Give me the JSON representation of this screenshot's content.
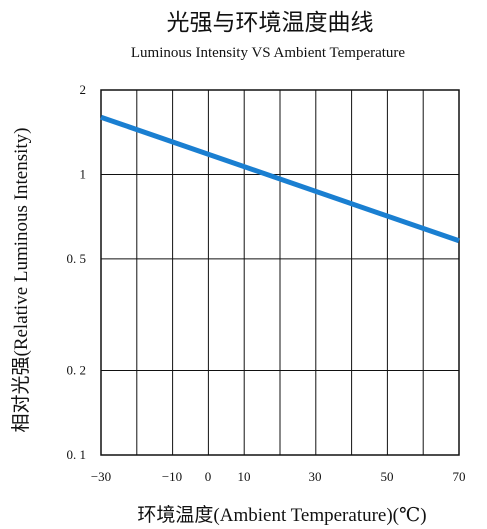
{
  "chart_data": {
    "type": "line",
    "title": "光强与环境温度曲线",
    "subtitle": "Luminous Intensity VS Ambient Temperature",
    "xlabel": "环境温度(Ambient Temperature)(℃)",
    "ylabel": "相对光强(Relative Luminous Intensity)",
    "xlim": [
      -30,
      70
    ],
    "x_ticks": [
      -30,
      -10,
      0,
      10,
      30,
      50,
      70
    ],
    "x_tick_labels": [
      "−30",
      "−10",
      "0",
      "10",
      "30",
      "50",
      "70"
    ],
    "y_ticks": [
      0.1,
      0.2,
      0.5,
      1,
      2
    ],
    "y_tick_labels": [
      "0. 1",
      "0. 2",
      "0. 5",
      "1",
      "2"
    ],
    "grid": true,
    "series": [
      {
        "color": "#1a7fd1",
        "x": [
          -30,
          70
        ],
        "y": [
          1.6,
          0.58
        ]
      }
    ]
  }
}
